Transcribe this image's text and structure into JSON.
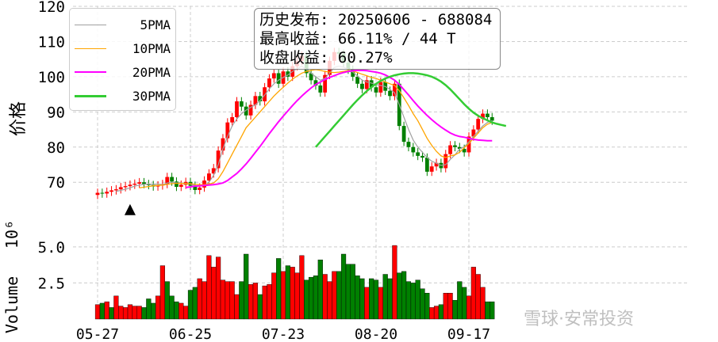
{
  "info_box": {
    "line1": "历史发布: 20250606 - 688084",
    "line2": "最高收益: 66.11% / 44 T",
    "line3": "收盘收益: 60.27%"
  },
  "watermark": "雪球·安常投资",
  "colors": {
    "up": "#ff0000",
    "down": "#008000",
    "ma5": "#a0a0a0",
    "ma10": "#ffa500",
    "ma20": "#ff00ff",
    "ma30": "#33cc33",
    "grid": "#cccccc"
  },
  "chart_data": [
    {
      "type": "candlestick",
      "ylabel": "价格",
      "ylim": [
        57,
        120
      ],
      "yticks": [
        70,
        80,
        90,
        100,
        110,
        120
      ],
      "xticks": [
        "05-27",
        "06-25",
        "07-23",
        "08-20",
        "09-17"
      ],
      "xtick_index": [
        0,
        20,
        40,
        60,
        80
      ],
      "marker": {
        "type": "triangle-up",
        "index": 7,
        "value": 62
      },
      "legend": {
        "position": "top-left",
        "entries": [
          {
            "name": "5PMA",
            "color": "#a0a0a0"
          },
          {
            "name": "10PMA",
            "color": "#ffa500"
          },
          {
            "name": "20PMA",
            "color": "#ff00ff"
          },
          {
            "name": "30PMA",
            "color": "#33cc33"
          }
        ]
      },
      "close": [
        67.0,
        66.8,
        67.3,
        67.7,
        68.0,
        68.6,
        68.9,
        69.3,
        69.6,
        70.0,
        69.5,
        69.2,
        68.8,
        69.1,
        69.5,
        71.5,
        70.2,
        68.7,
        69.3,
        70.1,
        69.0,
        67.8,
        68.5,
        70.5,
        72.5,
        74.0,
        79.0,
        82.5,
        87.0,
        88.5,
        93.0,
        91.5,
        89.0,
        92.0,
        94.5,
        93.0,
        97.0,
        99.5,
        101.0,
        98.0,
        101.5,
        100.0,
        103.0,
        104.5,
        106.0,
        101.0,
        99.0,
        97.5,
        95.5,
        100.5,
        104.5,
        107.0,
        106.5,
        104.0,
        102.0,
        100.0,
        98.0,
        96.5,
        99.0,
        97.0,
        95.5,
        98.5,
        96.0,
        94.5,
        98.0,
        86.0,
        81.5,
        80.0,
        78.5,
        77.5,
        77.0,
        73.0,
        74.5,
        75.5,
        74.0,
        78.0,
        80.5,
        80.0,
        79.5,
        78.5,
        83.0,
        85.0,
        88.0,
        89.5,
        88.5,
        87.5
      ],
      "ma5": [
        null,
        null,
        null,
        null,
        67.4,
        67.7,
        68.0,
        68.4,
        68.9,
        69.2,
        69.4,
        69.5,
        69.4,
        69.5,
        69.3,
        69.8,
        70.0,
        69.8,
        69.8,
        69.7,
        69.5,
        69.0,
        68.9,
        69.0,
        70.0,
        72.0,
        75.0,
        79.5,
        83.0,
        86.0,
        88.0,
        89.5,
        90.5,
        91.3,
        92.0,
        93.2,
        94.8,
        96.5,
        98.0,
        99.0,
        99.8,
        100.5,
        101.5,
        102.3,
        103.0,
        102.0,
        101.0,
        100.0,
        99.0,
        99.5,
        101.0,
        102.6,
        103.0,
        102.7,
        102.2,
        101.3,
        100.2,
        99.0,
        98.5,
        98.2,
        97.8,
        97.5,
        97.2,
        96.4,
        95.4,
        92.0,
        88.5,
        85.0,
        82.0,
        80.0,
        78.5,
        77.0,
        76.0,
        75.4,
        74.8,
        75.0,
        76.5,
        77.8,
        79.5,
        80.0,
        81.5,
        83.0,
        84.5,
        86.0,
        87.0,
        87.5
      ],
      "ma10": [
        null,
        null,
        null,
        null,
        null,
        null,
        null,
        null,
        null,
        68.4,
        68.6,
        68.8,
        69.0,
        69.1,
        69.2,
        69.4,
        69.6,
        69.7,
        69.7,
        69.6,
        69.6,
        69.4,
        69.3,
        69.3,
        69.5,
        69.8,
        71.0,
        73.0,
        75.5,
        78.0,
        80.5,
        83.0,
        85.5,
        87.0,
        88.5,
        90.0,
        91.5,
        93.0,
        94.5,
        95.8,
        97.0,
        98.2,
        99.3,
        100.2,
        101.0,
        101.5,
        101.8,
        102.0,
        101.8,
        101.5,
        101.3,
        101.2,
        101.3,
        101.5,
        101.8,
        101.6,
        101.2,
        100.7,
        100.3,
        99.8,
        99.5,
        99.0,
        98.5,
        98.0,
        97.5,
        96.0,
        94.0,
        91.8,
        89.5,
        87.5,
        85.0,
        82.5,
        80.5,
        78.8,
        77.5,
        77.0,
        77.5,
        77.8,
        78.5,
        79.8,
        81.0,
        82.5,
        84.0,
        85.5,
        86.5,
        87.0
      ],
      "ma20": [
        null,
        null,
        null,
        null,
        null,
        null,
        null,
        null,
        null,
        null,
        null,
        null,
        null,
        null,
        null,
        null,
        null,
        null,
        null,
        68.5,
        68.7,
        68.9,
        69.0,
        69.1,
        69.2,
        69.3,
        69.5,
        69.8,
        70.5,
        71.5,
        72.5,
        73.8,
        75.2,
        76.8,
        78.5,
        80.2,
        82.0,
        83.8,
        85.5,
        87.2,
        88.8,
        90.3,
        91.8,
        93.2,
        94.5,
        95.7,
        96.8,
        97.8,
        98.5,
        99.2,
        99.8,
        100.3,
        100.8,
        101.2,
        101.5,
        101.7,
        101.8,
        101.8,
        101.7,
        101.5,
        101.3,
        101.0,
        100.5,
        99.8,
        99.0,
        97.8,
        96.3,
        94.8,
        93.2,
        91.7,
        90.3,
        89.0,
        87.8,
        86.7,
        85.7,
        84.8,
        84.0,
        83.4,
        83.0,
        82.8,
        82.5,
        82.2,
        82.0,
        81.9,
        81.8,
        81.8
      ],
      "ma30": [
        null,
        null,
        null,
        null,
        null,
        null,
        null,
        null,
        null,
        null,
        null,
        null,
        null,
        null,
        null,
        null,
        null,
        null,
        null,
        null,
        null,
        null,
        null,
        null,
        null,
        null,
        null,
        null,
        null,
        null,
        null,
        null,
        null,
        null,
        null,
        null,
        null,
        null,
        null,
        null,
        null,
        null,
        null,
        null,
        null,
        null,
        null,
        80.0,
        81.5,
        83.0,
        84.5,
        86.0,
        87.5,
        89.0,
        90.5,
        92.0,
        93.4,
        94.7,
        95.9,
        97.0,
        98.0,
        98.8,
        99.5,
        100.0,
        100.4,
        100.7,
        100.9,
        101.0,
        101.0,
        100.9,
        100.7,
        100.4,
        100.0,
        99.4,
        98.6,
        97.6,
        96.4,
        95.0,
        93.6,
        92.2,
        90.9,
        89.8,
        88.9,
        88.2,
        87.6,
        87.0,
        86.6,
        86.3,
        86.0
      ]
    },
    {
      "type": "bar",
      "ylabel": "Volume",
      "scale_label": "10⁶",
      "ylim": [
        0,
        6.2
      ],
      "yticks": [
        2.5,
        5.0
      ],
      "ytick_labels": [
        "2.5",
        "5.0"
      ],
      "values": [
        1.0,
        1.1,
        1.2,
        0.8,
        1.6,
        0.9,
        0.8,
        1.0,
        0.9,
        0.9,
        0.8,
        1.4,
        1.1,
        1.6,
        3.7,
        2.6,
        1.6,
        1.2,
        1.1,
        0.9,
        2.0,
        2.2,
        2.8,
        2.6,
        4.4,
        3.6,
        4.3,
        2.7,
        2.6,
        2.6,
        1.7,
        2.6,
        4.5,
        2.4,
        2.5,
        1.7,
        2.3,
        2.4,
        3.2,
        4.2,
        3.3,
        3.7,
        3.6,
        3.2,
        4.4,
        2.7,
        2.9,
        3.0,
        4.1,
        3.1,
        2.6,
        3.3,
        3.3,
        4.5,
        3.8,
        3.8,
        3.0,
        2.8,
        2.2,
        2.8,
        2.7,
        2.2,
        3.1,
        2.8,
        5.1,
        3.2,
        3.3,
        2.6,
        2.5,
        2.7,
        2.1,
        1.8,
        0.8,
        0.9,
        1.0,
        1.8,
        1.8,
        1.3,
        2.6,
        2.2,
        1.6,
        3.6,
        3.1,
        2.2,
        1.2,
        1.2
      ],
      "up": [
        true,
        false,
        true,
        false,
        true,
        true,
        true,
        true,
        true,
        true,
        false,
        false,
        false,
        true,
        true,
        false,
        false,
        false,
        true,
        true,
        false,
        false,
        true,
        true,
        true,
        true,
        true,
        true,
        true,
        true,
        true,
        false,
        false,
        true,
        true,
        false,
        true,
        true,
        true,
        false,
        true,
        false,
        true,
        true,
        true,
        false,
        false,
        false,
        false,
        true,
        true,
        true,
        false,
        false,
        false,
        false,
        false,
        false,
        true,
        false,
        false,
        true,
        false,
        false,
        true,
        false,
        false,
        false,
        false,
        false,
        false,
        false,
        true,
        true,
        false,
        true,
        true,
        false,
        false,
        false,
        true,
        true,
        true,
        true,
        false,
        false
      ]
    }
  ]
}
